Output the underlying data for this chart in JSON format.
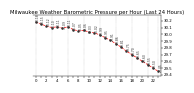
{
  "title": "Milwaukee Weather Barometric Pressure per Hour (Last 24 Hours)",
  "hours": [
    0,
    1,
    2,
    3,
    4,
    5,
    6,
    7,
    8,
    9,
    10,
    11,
    12,
    13,
    14,
    15,
    16,
    17,
    18,
    19,
    20,
    21,
    22,
    23
  ],
  "pressure": [
    30.18,
    30.15,
    30.12,
    30.1,
    30.11,
    30.09,
    30.11,
    30.07,
    30.05,
    30.06,
    30.03,
    30.02,
    29.99,
    29.95,
    29.91,
    29.86,
    29.81,
    29.75,
    29.7,
    29.65,
    29.6,
    29.55,
    29.5,
    29.45
  ],
  "ylim": [
    29.38,
    30.28
  ],
  "yticks": [
    29.4,
    29.5,
    29.6,
    29.7,
    29.8,
    29.9,
    30.0,
    30.1,
    30.2
  ],
  "ytick_labels": [
    "29.4",
    "29.5",
    "29.6",
    "29.7",
    "29.8",
    "29.9",
    "30.0",
    "30.1",
    "30.2"
  ],
  "line_color": "#ff0000",
  "marker_color": "#333333",
  "bg_color": "#ffffff",
  "grid_color": "#999999",
  "title_fontsize": 3.8,
  "tick_fontsize": 2.8,
  "label_fontsize": 2.2,
  "grid_hours": [
    0,
    3,
    6,
    9,
    12,
    15,
    18,
    21,
    23
  ]
}
